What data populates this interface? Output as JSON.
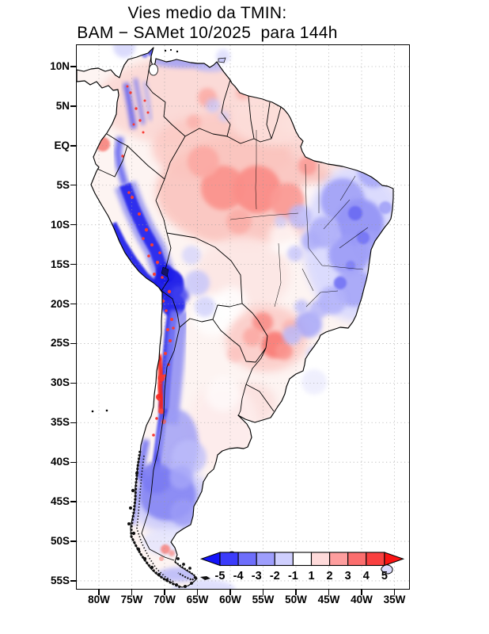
{
  "figure": {
    "title_line1": "Vies medio da TMIN:",
    "title_line2": "BAM − SAMet 10/2025  para 144h"
  },
  "map": {
    "kind": "filled-contour temperature-bias map",
    "region": "South America",
    "lat_tick_labels": [
      "10N",
      "5N",
      "EQ",
      "5S",
      "10S",
      "15S",
      "20S",
      "25S",
      "30S",
      "35S",
      "40S",
      "45S",
      "50S",
      "55S"
    ],
    "lon_tick_labels": [
      "80W",
      "75W",
      "70W",
      "65W",
      "60W",
      "55W",
      "50W",
      "45W",
      "40W",
      "35W"
    ],
    "graticule": "dotted 5-degree grid"
  },
  "colorbar": {
    "tick_labels": [
      "-5",
      "-4",
      "-3",
      "-2",
      "-1",
      "1",
      "2",
      "3",
      "4",
      "5"
    ],
    "left_arrow_color": "#1414fa",
    "segment_colors": [
      "#3c3cfb",
      "#6e6efb",
      "#9e9efc",
      "#cfcffe",
      "#ffffff",
      "#fedada",
      "#fe9e9e",
      "#fb6e6e",
      "#f94040"
    ],
    "right_arrow_color": "#fa1414"
  },
  "field_summary": {
    "warm_bias_regions": [
      "central Amazon basin",
      "Venezuelan Llanos",
      "Paraguay / Parana basin",
      "central Chile coast 28S-34S",
      "Ecuador coast near EQ"
    ],
    "cold_bias_regions": [
      "Andes of Peru-Bolivia-Chile",
      "Colombian cordilleras",
      "Northeast Brazil",
      "western Argentina",
      "Argentine Patagonia 40S-48S",
      "Tierra del Fuego"
    ]
  }
}
